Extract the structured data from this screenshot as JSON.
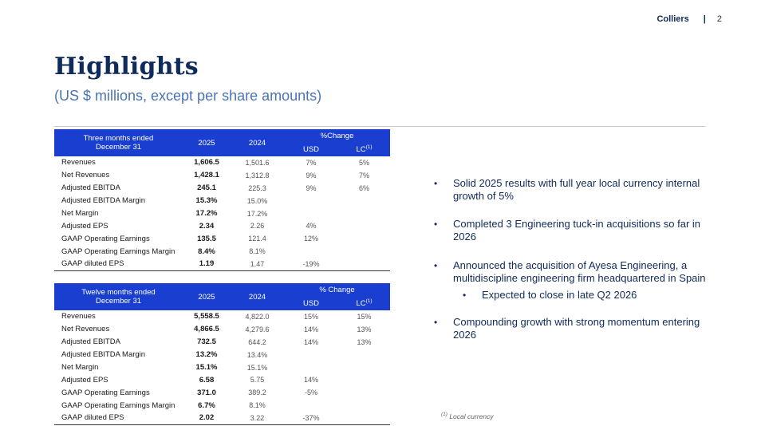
{
  "header": {
    "brand": "Colliers",
    "separator": "|",
    "page_number": "2"
  },
  "title": "Highlights",
  "subtitle": "(US $ millions, except per share amounts)",
  "quarter_table": {
    "label_line1": "Three months ended",
    "label_line2": "December 31",
    "col_2025": "2025",
    "col_2024": "2024",
    "pct_change": "%Change",
    "usd": "USD",
    "lc": "LC",
    "lc_sup": "(1)",
    "rows": [
      {
        "metric": "Revenues",
        "y2025": "1,606.5",
        "y2024": "1,501.6",
        "usd": "7%",
        "lc": "5%"
      },
      {
        "metric": "Net Revenues",
        "y2025": "1,428.1",
        "y2024": "1,312.8",
        "usd": "9%",
        "lc": "7%"
      },
      {
        "metric": "Adjusted EBITDA",
        "y2025": "245.1",
        "y2024": "225.3",
        "usd": "9%",
        "lc": "6%"
      },
      {
        "metric": "Adjusted EBITDA Margin",
        "y2025": "15.3%",
        "y2024": "15.0%",
        "usd": "",
        "lc": ""
      },
      {
        "metric": "Net Margin",
        "y2025": "17.2%",
        "y2024": "17.2%",
        "usd": "",
        "lc": ""
      },
      {
        "metric": "Adjusted EPS",
        "y2025": "2.34",
        "y2024": "2.26",
        "usd": "4%",
        "lc": ""
      },
      {
        "metric": "GAAP Operating Earnings",
        "y2025": "135.5",
        "y2024": "121.4",
        "usd": "12%",
        "lc": ""
      },
      {
        "metric": "GAAP Operating Earnings Margin",
        "y2025": "8.4%",
        "y2024": "8.1%",
        "usd": "",
        "lc": ""
      },
      {
        "metric": "GAAP diluted EPS",
        "y2025": "1.19",
        "y2024": "1.47",
        "usd": "-19%",
        "lc": ""
      }
    ]
  },
  "year_table": {
    "label_line1": "Twelve months ended",
    "label_line2": "December 31",
    "col_2025": "2025",
    "col_2024": "2024",
    "pct_change": "% Change",
    "usd": "USD",
    "lc": "LC",
    "lc_sup": "(1)",
    "rows": [
      {
        "metric": "Revenues",
        "y2025": "5,558.5",
        "y2024": "4,822.0",
        "usd": "15%",
        "lc": "15%"
      },
      {
        "metric": "Net Revenues",
        "y2025": "4,866.5",
        "y2024": "4,279.6",
        "usd": "14%",
        "lc": "13%"
      },
      {
        "metric": "Adjusted EBITDA",
        "y2025": "732.5",
        "y2024": "644.2",
        "usd": "14%",
        "lc": "13%"
      },
      {
        "metric": "Adjusted EBITDA Margin",
        "y2025": "13.2%",
        "y2024": "13.4%",
        "usd": "",
        "lc": ""
      },
      {
        "metric": "Net Margin",
        "y2025": "15.1%",
        "y2024": "15.1%",
        "usd": "",
        "lc": ""
      },
      {
        "metric": "Adjusted EPS",
        "y2025": "6.58",
        "y2024": "5.75",
        "usd": "14%",
        "lc": ""
      },
      {
        "metric": "GAAP Operating Earnings",
        "y2025": "371.0",
        "y2024": "389.2",
        "usd": "-5%",
        "lc": ""
      },
      {
        "metric": "GAAP Operating Earnings Margin",
        "y2025": "6.7%",
        "y2024": "8.1%",
        "usd": "",
        "lc": ""
      },
      {
        "metric": "GAAP diluted EPS",
        "y2025": "2.02",
        "y2024": "3.22",
        "usd": "-37%",
        "lc": ""
      }
    ]
  },
  "bullets": {
    "b1": "Solid 2025 results with full year local currency internal growth of 5%",
    "b2": "Completed 3 Engineering tuck-in acquisitions so far in 2026",
    "b3": "Announced the acquisition of Ayesa Engineering, a multidiscipline engineering firm headquartered in Spain",
    "b3_sub": "Expected to close in late Q2 2026",
    "b4": "Compounding growth with strong momentum entering 2026",
    "bullet_glyph": "•"
  },
  "footnote": {
    "sup": "(1)",
    "text": " Local currency"
  }
}
